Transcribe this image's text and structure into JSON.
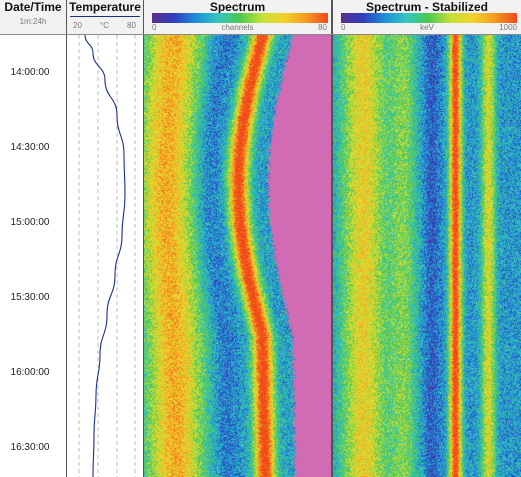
{
  "date_time": {
    "title": "Date/Time",
    "range": "1m:24h",
    "ticks": [
      "14:00:00",
      "14:30:00",
      "15:00:00",
      "15:30:00",
      "16:00:00",
      "16:30:00"
    ]
  },
  "temperature": {
    "title": "Temperature",
    "min_label": "20",
    "unit": "°C",
    "max_label": "80",
    "line_color": "#1a2f8a"
  },
  "spectrum": {
    "title": "Spectrum",
    "axis_min": "0",
    "axis_unit": "channels",
    "axis_max": "80"
  },
  "stabilized": {
    "title": "Spectrum - Stabilized",
    "axis_min": "0",
    "axis_unit": "keV",
    "axis_max": "1000"
  },
  "colors": {
    "background": "#d16bb3",
    "palette": [
      "#5a2e8c",
      "#2f3fbf",
      "#1e8fd8",
      "#34c6c0",
      "#4cc84c",
      "#c8e03a",
      "#f2d229",
      "#f59a22",
      "#f04a1a"
    ]
  }
}
